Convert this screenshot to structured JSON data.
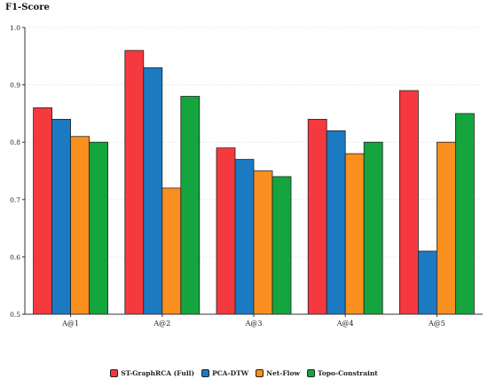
{
  "chart_data": {
    "type": "bar",
    "title": "F1-Score",
    "categories": [
      "A@1",
      "A@2",
      "A@3",
      "A@4",
      "A@5"
    ],
    "series": [
      {
        "name": "ST-GraphRCA (Full)",
        "values": [
          0.86,
          0.96,
          0.79,
          0.84,
          0.89
        ],
        "color": "#f4393f"
      },
      {
        "name": "PCA-DTW",
        "values": [
          0.84,
          0.93,
          0.77,
          0.82,
          0.61
        ],
        "color": "#1c7ac2"
      },
      {
        "name": "Net-Flow",
        "values": [
          0.81,
          0.72,
          0.75,
          0.78,
          0.8
        ],
        "color": "#f98f1f"
      },
      {
        "name": "Topo-Constraint",
        "values": [
          0.8,
          0.88,
          0.74,
          0.8,
          0.85
        ],
        "color": "#14a53e"
      }
    ],
    "ylim": [
      0.5,
      1.0
    ],
    "yticks": [
      "0.5",
      "0.6",
      "0.7",
      "0.8",
      "0.9",
      "1.0"
    ],
    "grid": true,
    "legend_position": "bottom-center"
  }
}
